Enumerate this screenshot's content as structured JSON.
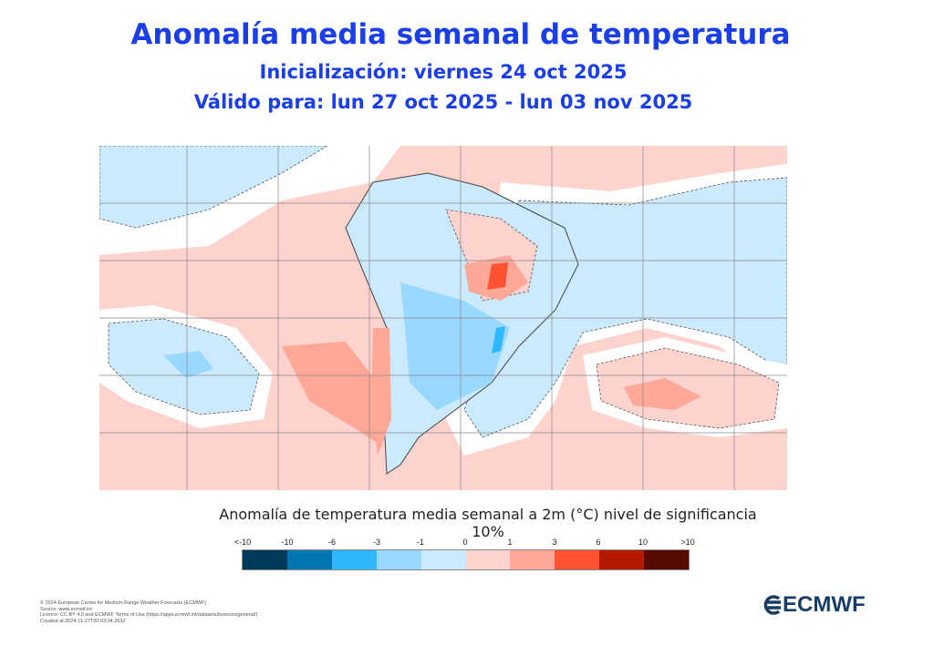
{
  "title": "Anomalía  media semanal de temperatura",
  "initialization": "Inicialización: viernes 24 oct 2025",
  "valid": "Válido para: lun 27 oct 2025 - lun 03  nov 2025",
  "caption": "Anomalía de temperatura media semanal a 2m (°C) nivel de significancia 10%",
  "colorbar": {
    "ticks": [
      "<-10",
      "-10",
      "-6",
      "-3",
      "-1",
      "0",
      "1",
      "3",
      "6",
      "10",
      ">10"
    ],
    "colors": [
      "#003a58",
      "#0075b0",
      "#2fb8ff",
      "#9ad9ff",
      "#cbeafd",
      "#ffd3cd",
      "#ffa897",
      "#ff5233",
      "#b31a00",
      "#570b00"
    ]
  },
  "footer": [
    "© 2024 European Centre for Medium-Range Weather Forecasts (ECMWF)",
    "Source: www.ecmwf.int",
    "Licence: CC BY 4.0 and ECMWF Terms of Use (https://apps.ecmwf.int/datasets/licences/general/)",
    "Created at 2024-11-27T20:03:04.263Z"
  ],
  "logo": "ECMWF"
}
